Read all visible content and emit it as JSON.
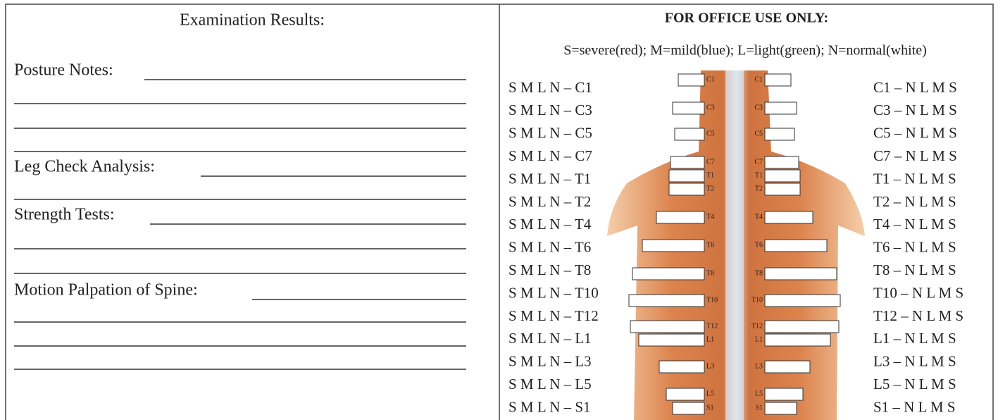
{
  "left": {
    "title": "Examination Results:",
    "fields": [
      "Posture Notes:",
      "Leg Check Analysis:",
      "Strength Tests:",
      "Motion Palpation of Spine:"
    ]
  },
  "right": {
    "title": "FOR OFFICE USE ONLY:",
    "legend": "S=severe(red); M=mild(blue); L=light(green); N=normal(white)",
    "left_rows": [
      "S M L N – C1",
      "S M L N – C3",
      "S M L N – C5",
      "S M L N – C7",
      "S M L N – T1",
      "S M L N – T2",
      "S M L N – T4",
      "S M L N – T6",
      "S M L N – T8",
      "S M L N – T10",
      "S M L N – T12",
      "S M L N – L1",
      "S M L N – L3",
      "S M L N – L5",
      "S M L N – S1"
    ],
    "right_rows": [
      "C1 – N L M S",
      "C3 – N L M S",
      "C5 – N L M S",
      "C7 – N L M S",
      "T1 – N L M S",
      "T2 – N L M S",
      "T4 – N L M S",
      "T6 – N L M S",
      "T8 – N L M S",
      "T10 – N L M S",
      "T12 – N L M S",
      "L1 – N L M S",
      "L3 – N L M S",
      "L5 – N L M S",
      "S1 – N L M S"
    ],
    "spine_levels": [
      "C1",
      "C3",
      "C5",
      "C7",
      "T1",
      "T2",
      "T4",
      "T6",
      "T8",
      "T10",
      "T12",
      "L1",
      "L3",
      "L5",
      "S1"
    ]
  }
}
